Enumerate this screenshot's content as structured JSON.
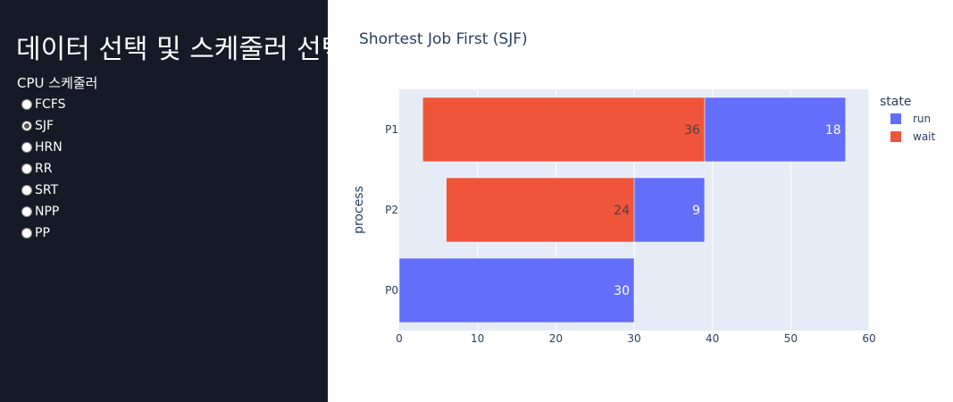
{
  "sidebar": {
    "title": "데이터 선택 및 스케줄러 선택",
    "group_label": "CPU 스케줄러",
    "options": [
      "FCFS",
      "SJF",
      "HRN",
      "RR",
      "SRT",
      "NPP",
      "PP"
    ],
    "selected": "SJF"
  },
  "chart_data": {
    "type": "bar",
    "orientation": "horizontal",
    "barmode": "stacked",
    "title": "Shortest Job First (SJF)",
    "ylabel": "process",
    "xlabel": "",
    "categories": [
      "P0",
      "P2",
      "P1"
    ],
    "xlim": [
      0,
      60
    ],
    "xticks": [
      0,
      10,
      20,
      30,
      40,
      50,
      60
    ],
    "grid": true,
    "legend": {
      "title": "state",
      "position": "top-right"
    },
    "series": [
      {
        "name": "run",
        "color": "#636efa",
        "bars": [
          {
            "category": "P0",
            "start": 0,
            "value": 30,
            "label": "30"
          },
          {
            "category": "P2",
            "start": 30,
            "value": 9,
            "label": "9"
          },
          {
            "category": "P1",
            "start": 39,
            "value": 18,
            "label": "18"
          }
        ]
      },
      {
        "name": "wait",
        "color": "#ef553b",
        "bars": [
          {
            "category": "P2",
            "start": 6,
            "value": 24,
            "label": "24"
          },
          {
            "category": "P1",
            "start": 3,
            "value": 36,
            "label": "36"
          }
        ]
      }
    ]
  }
}
